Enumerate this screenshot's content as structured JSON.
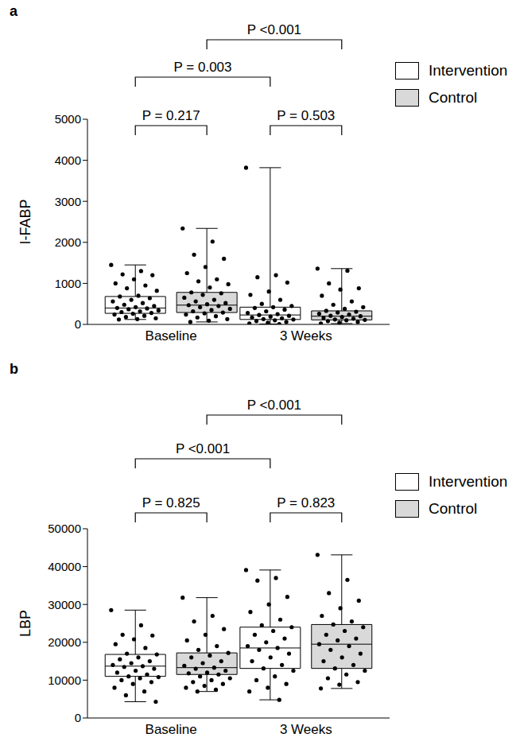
{
  "chart_data": [
    {
      "type": "box",
      "panel": "a",
      "ylabel": "I-FABP",
      "categories": [
        "Baseline",
        "3 Weeks"
      ],
      "ylim": [
        0,
        5000
      ],
      "yticks": [
        0,
        1000,
        2000,
        3000,
        4000,
        5000
      ],
      "legend": "right",
      "series": [
        {
          "name": "Intervention",
          "color": "#ffffff",
          "boxes": [
            {
              "min": 120,
              "q1": 270,
              "median": 400,
              "q3": 680,
              "max": 1450,
              "points": [
                1450,
                1300,
                1220,
                1200,
                1100,
                1000,
                950,
                880,
                820,
                700,
                680,
                640,
                600,
                560,
                520,
                480,
                450,
                420,
                400,
                390,
                370,
                340,
                320,
                300,
                280,
                260,
                240,
                210,
                180,
                150,
                130,
                120
              ]
            },
            {
              "min": 10,
              "q1": 120,
              "median": 230,
              "q3": 420,
              "max": 3820,
              "points": [
                3820,
                1200,
                1150,
                1020,
                800,
                720,
                600,
                500,
                450,
                420,
                400,
                360,
                320,
                280,
                250,
                230,
                210,
                190,
                170,
                150,
                130,
                120,
                100,
                80,
                60,
                40,
                20,
                10
              ]
            }
          ]
        },
        {
          "name": "Control",
          "color": "#d9d9d9",
          "boxes": [
            {
              "min": 60,
              "q1": 290,
              "median": 470,
              "q3": 780,
              "max": 2340,
              "points": [
                2340,
                2020,
                1700,
                1600,
                1400,
                1250,
                1100,
                1050,
                980,
                900,
                780,
                760,
                720,
                650,
                600,
                560,
                520,
                490,
                470,
                450,
                420,
                380,
                350,
                320,
                290,
                270,
                240,
                200,
                170,
                130,
                90,
                60
              ]
            },
            {
              "min": 20,
              "q1": 110,
              "median": 200,
              "q3": 330,
              "max": 1360,
              "points": [
                1360,
                1310,
                1000,
                880,
                850,
                700,
                560,
                480,
                420,
                380,
                330,
                310,
                290,
                260,
                240,
                210,
                200,
                180,
                160,
                140,
                120,
                110,
                100,
                80,
                60,
                40,
                20
              ]
            }
          ]
        }
      ],
      "annotations": [
        {
          "text": "P = 0.217",
          "from": {
            "category": "Baseline",
            "series": "Intervention"
          },
          "to": {
            "category": "Baseline",
            "series": "Control"
          }
        },
        {
          "text": "P = 0.503",
          "from": {
            "category": "3 Weeks",
            "series": "Intervention"
          },
          "to": {
            "category": "3 Weeks",
            "series": "Control"
          }
        },
        {
          "text": "P = 0.003",
          "from": {
            "category": "Baseline",
            "series": "Intervention"
          },
          "to": {
            "category": "3 Weeks",
            "series": "Intervention"
          }
        },
        {
          "text": "P <0.001",
          "from": {
            "category": "Baseline",
            "series": "Control"
          },
          "to": {
            "category": "3 Weeks",
            "series": "Control"
          }
        }
      ]
    },
    {
      "type": "box",
      "panel": "b",
      "ylabel": "LBP",
      "categories": [
        "Baseline",
        "3 Weeks"
      ],
      "ylim": [
        0,
        50000
      ],
      "yticks": [
        0,
        10000,
        20000,
        30000,
        40000,
        50000
      ],
      "legend": "right",
      "series": [
        {
          "name": "Intervention",
          "color": "#ffffff",
          "boxes": [
            {
              "min": 4300,
              "q1": 11000,
              "median": 13700,
              "q3": 16800,
              "max": 28500,
              "points": [
                28500,
                24500,
                22000,
                21800,
                20800,
                19500,
                18500,
                17000,
                16800,
                16000,
                15500,
                15000,
                14500,
                14000,
                13700,
                13500,
                13000,
                12500,
                12000,
                11500,
                11000,
                10800,
                10500,
                10000,
                9500,
                9000,
                8000,
                7000,
                6000,
                4300
              ]
            },
            {
              "min": 4800,
              "q1": 13100,
              "median": 18500,
              "q3": 24000,
              "max": 39100,
              "points": [
                39100,
                37000,
                36300,
                32000,
                30000,
                28000,
                26000,
                24500,
                24000,
                23000,
                22000,
                21000,
                20000,
                19000,
                18500,
                18000,
                17000,
                16000,
                15000,
                14000,
                13100,
                12500,
                11000,
                10000,
                9000,
                8000,
                7000,
                4800
              ]
            }
          ]
        },
        {
          "name": "Control",
          "color": "#d9d9d9",
          "boxes": [
            {
              "min": 7000,
              "q1": 11500,
              "median": 13300,
              "q3": 17200,
              "max": 31800,
              "points": [
                31800,
                27000,
                25500,
                23500,
                22000,
                20500,
                19000,
                18000,
                17200,
                16500,
                16000,
                15000,
                14500,
                13800,
                13300,
                13000,
                12500,
                12000,
                11800,
                11500,
                11000,
                10500,
                10000,
                9500,
                9000,
                8500,
                8000,
                7500,
                7000
              ]
            },
            {
              "min": 7800,
              "q1": 13100,
              "median": 19500,
              "q3": 24700,
              "max": 43100,
              "points": [
                43100,
                36500,
                33000,
                31000,
                29000,
                27000,
                25500,
                24700,
                24000,
                23000,
                22000,
                21000,
                20500,
                19500,
                19000,
                18000,
                17000,
                16000,
                15000,
                14000,
                13100,
                12500,
                11500,
                10500,
                9500,
                8800,
                7800
              ]
            }
          ]
        }
      ],
      "annotations": [
        {
          "text": "P = 0.825",
          "from": {
            "category": "Baseline",
            "series": "Intervention"
          },
          "to": {
            "category": "Baseline",
            "series": "Control"
          }
        },
        {
          "text": "P = 0.823",
          "from": {
            "category": "3 Weeks",
            "series": "Intervention"
          },
          "to": {
            "category": "3 Weeks",
            "series": "Control"
          }
        },
        {
          "text": "P <0.001",
          "from": {
            "category": "Baseline",
            "series": "Intervention"
          },
          "to": {
            "category": "3 Weeks",
            "series": "Intervention"
          }
        },
        {
          "text": "P <0.001",
          "from": {
            "category": "Baseline",
            "series": "Control"
          },
          "to": {
            "category": "3 Weeks",
            "series": "Control"
          }
        }
      ]
    }
  ]
}
